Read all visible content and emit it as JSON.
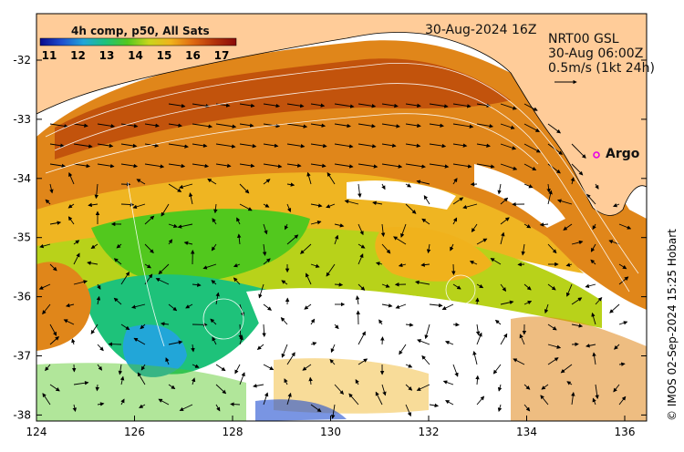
{
  "map_title": "30-Aug-2024 16Z",
  "product": {
    "line1": "NRT00 GSL",
    "line2": "30-Aug 06:00Z",
    "line3": "0.5m/s (1kt 24h)"
  },
  "colorbar": {
    "title": "4h comp, p50, All Sats",
    "ticks": [
      "11",
      "12",
      "13",
      "14",
      "15",
      "16",
      "17"
    ],
    "colors": [
      "#0a0a8c",
      "#1f4fd0",
      "#22a6d8",
      "#1ec27a",
      "#52c81e",
      "#c9d61c",
      "#f0b21c",
      "#e06a12",
      "#b3320a",
      "#8a0a0a"
    ]
  },
  "argo": {
    "label": "Argo",
    "marker_color": "#e600e6"
  },
  "axes": {
    "lat_ticks": [
      "-32",
      "-33",
      "-34",
      "-35",
      "-36",
      "-37",
      "-38"
    ],
    "lon_ticks": [
      "124",
      "126",
      "128",
      "130",
      "132",
      "134",
      "136"
    ]
  },
  "credit": "© IMOS 02-Sep-2024 15:25 Hobart",
  "colors": {
    "land": "#ffcc99",
    "coastline": "#000000"
  }
}
